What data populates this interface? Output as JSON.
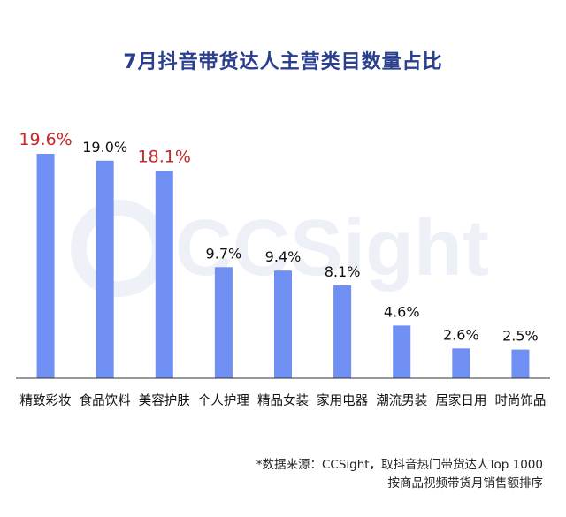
{
  "title": "7月抖音带货达人主营类目数量占比",
  "watermark": "CCSight",
  "source": {
    "line1": "*数据来源：CCSight，取抖音热门带货达人Top 1000",
    "line2": "按商品视频带货月销售额排序"
  },
  "colors": {
    "bar": "#6f8ff3",
    "label_default": "#111111",
    "label_highlight": "#c62828",
    "axis": "#333333"
  },
  "chart_data": {
    "type": "bar",
    "title": "7月抖音带货达人主营类目数量占比",
    "categories": [
      "精致彩妆",
      "食品饮料",
      "美容护肤",
      "个人护理",
      "精品女装",
      "家用电器",
      "潮流男装",
      "居家日用",
      "时尚饰品"
    ],
    "values": [
      19.6,
      19.0,
      18.1,
      9.7,
      9.4,
      8.1,
      4.6,
      2.6,
      2.5
    ],
    "value_labels": [
      "19.6%",
      "19.0%",
      "18.1%",
      "9.7%",
      "9.4%",
      "8.1%",
      "4.6%",
      "2.6%",
      "2.5%"
    ],
    "highlighted": [
      true,
      false,
      true,
      false,
      false,
      false,
      false,
      false,
      false
    ],
    "ylim": [
      0,
      19.6
    ],
    "grid": false,
    "legend": "none",
    "xlabel": "",
    "ylabel": ""
  }
}
